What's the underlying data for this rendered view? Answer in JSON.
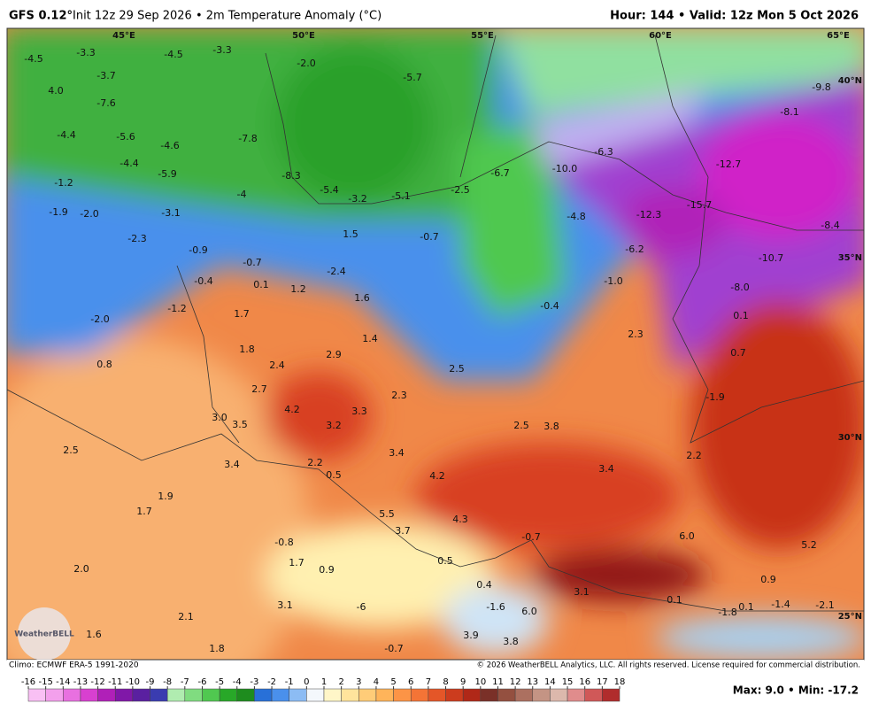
{
  "header": {
    "model": "GFS 0.12°",
    "init": "Init 12z 29 Sep 2026 • 2m Temperature Anomaly (°C)",
    "valid": "Hour: 144 • Valid: 12z Mon 5 Oct 2026"
  },
  "map": {
    "lon_labels": [
      "45°E",
      "50°E",
      "55°E",
      "60°E",
      "65°E"
    ],
    "lat_labels": [
      "40°N",
      "35°N",
      "30°N",
      "25°N"
    ],
    "labels": [
      "-4.5",
      "-3.3",
      "-4.5",
      "-3.3",
      "-2.0",
      "4.0",
      "-3.7",
      "-7.6",
      "-5.7",
      "-9.8",
      "-4.4",
      "-5.6",
      "-4.6",
      "-7.8",
      "-8.1",
      "-6.3",
      "-6.7",
      "-10.0",
      "-12.7",
      "-4.4",
      "-5.9",
      "-8.3",
      "-5.4",
      "-1.2",
      "-4",
      "-3.2",
      "-5.1",
      "-2.5",
      "-1.9",
      "-2.0",
      "-3.1",
      "-4.8",
      "-12.3",
      "-15.7",
      "-8.4",
      "-2.3",
      "-0.9",
      "1.5",
      "-0.7",
      "-6.2",
      "-10.7",
      "-0.7",
      "-2.4",
      "-0.4",
      "0.1",
      "1.2",
      "1.6",
      "-1.0",
      "-8.0",
      "-1.2",
      "1.7",
      "-0.4",
      "0.1",
      "-2.0",
      "1.4",
      "2.3",
      "1.8",
      "2.4",
      "2.9",
      "2.5",
      "0.7",
      "0.8",
      "2.7",
      "2.3",
      "-1.9",
      "4.2",
      "3.3",
      "3.0",
      "3.5",
      "3.2",
      "2.5",
      "3.8",
      "2.5",
      "3.4",
      "2.2",
      "3.4",
      "2.2",
      "0.5",
      "4.2",
      "3.4",
      "1.9",
      "1.7",
      "5.5",
      "4.3",
      "6.0",
      "3.7",
      "-0.8",
      "-0.7",
      "5.2",
      "2.0",
      "1.7",
      "0.9",
      "0.5",
      "0.4",
      "0.9",
      "3.1",
      "0.1",
      "3.1",
      "-1.6",
      "-6",
      "6.0",
      "-1.8",
      "0.1",
      "-1.4",
      "-2.1",
      "2.1",
      "1.6",
      "3.9",
      "3.8",
      "1.8",
      "-0.7"
    ]
  },
  "colorbar": {
    "ticks": [
      -16,
      -15,
      -14,
      -13,
      -12,
      -11,
      -10,
      -9,
      -8,
      -7,
      -6,
      -5,
      -4,
      -3,
      -2,
      -1,
      0,
      1,
      2,
      3,
      4,
      5,
      6,
      7,
      8,
      9,
      10,
      11,
      12,
      13,
      14,
      15,
      16,
      17,
      18
    ],
    "colors": [
      "#f9c0f4",
      "#f3a0ec",
      "#e870e0",
      "#d840d0",
      "#b020b8",
      "#8018a8",
      "#5a20a0",
      "#3a3cb0",
      "#b0ecb0",
      "#80dc80",
      "#50c850",
      "#28a828",
      "#1e8c1e",
      "#2870d8",
      "#4a90ec",
      "#8cbcf4",
      "#f4f8fc",
      "#fff6c8",
      "#ffe49c",
      "#ffcc78",
      "#ffb45a",
      "#fc9446",
      "#f47436",
      "#e45628",
      "#cc3c1e",
      "#b02818",
      "#7a3028",
      "#945040",
      "#ac7060",
      "#c49484",
      "#dcb8ac",
      "#e08c8c",
      "#d05858",
      "#b02c2c"
    ]
  },
  "footer": {
    "climo": "Climo: ECMWF ERA-5 1991-2020",
    "copyright": "© 2026 WeatherBELL Analytics, LLC. All rights reserved. License required for commercial distribution.",
    "stats": "Max: 9.0 • Min: -17.2",
    "logo": "WeatherBELL"
  }
}
